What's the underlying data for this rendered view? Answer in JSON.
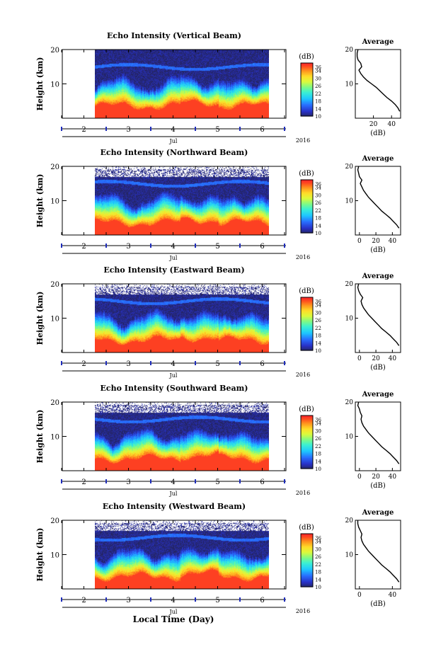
{
  "figure": {
    "xlabel": "Local Time (Day)"
  },
  "chart_data": [
    {
      "type": "heatmap",
      "title": "Echo Intensity (Vertical Beam)",
      "ylabel": "Height (km)",
      "ylim": [
        0,
        20
      ],
      "y_ticks": [
        10,
        20
      ],
      "x_ticks": [
        "2",
        "3",
        "4",
        "5",
        "6"
      ],
      "month_label": "Jul",
      "year_label": "2016",
      "colorbar": {
        "label": "(dB)",
        "ticks": [
          "36",
          "34",
          "30",
          "26",
          "22",
          "18",
          "14",
          "10"
        ],
        "range": [
          10,
          38
        ]
      },
      "average": {
        "title": "Average",
        "xlabel": "(dB)",
        "x_ticks": [
          "20",
          "40"
        ],
        "xlim": [
          0,
          50
        ],
        "profile": [
          [
            2,
            49
          ],
          [
            3,
            47
          ],
          [
            4,
            44
          ],
          [
            5,
            40
          ],
          [
            6,
            35
          ],
          [
            7,
            31
          ],
          [
            8,
            27
          ],
          [
            9,
            23
          ],
          [
            10,
            18
          ],
          [
            11,
            13
          ],
          [
            12,
            9
          ],
          [
            13,
            6
          ],
          [
            14,
            4
          ],
          [
            15,
            7
          ],
          [
            16,
            6
          ],
          [
            17,
            3
          ],
          [
            18,
            2
          ],
          [
            19,
            2
          ],
          [
            20,
            3
          ]
        ]
      }
    },
    {
      "type": "heatmap",
      "title": "Echo Intensity (Northward Beam)",
      "ylabel": "Height (km)",
      "ylim": [
        0,
        20
      ],
      "y_ticks": [
        10,
        20
      ],
      "x_ticks": [
        "2",
        "3",
        "4",
        "5",
        "6"
      ],
      "month_label": "Jul",
      "year_label": "2016",
      "colorbar": {
        "label": "(dB)",
        "ticks": [
          "36",
          "34",
          "30",
          "26",
          "22",
          "18",
          "14",
          "10"
        ],
        "range": [
          10,
          38
        ]
      },
      "average": {
        "title": "Average",
        "xlabel": "(dB)",
        "x_ticks": [
          "0",
          "20",
          "40"
        ],
        "xlim": [
          -5,
          50
        ],
        "profile": [
          [
            2,
            48
          ],
          [
            3,
            45
          ],
          [
            4,
            41
          ],
          [
            5,
            37
          ],
          [
            6,
            32
          ],
          [
            7,
            27
          ],
          [
            8,
            23
          ],
          [
            9,
            19
          ],
          [
            10,
            15
          ],
          [
            11,
            11
          ],
          [
            12,
            8
          ],
          [
            13,
            5
          ],
          [
            14,
            3
          ],
          [
            15,
            1
          ],
          [
            16,
            3
          ],
          [
            17,
            0
          ],
          [
            18,
            -1
          ],
          [
            19,
            -2
          ],
          [
            20,
            -1
          ]
        ]
      }
    },
    {
      "type": "heatmap",
      "title": "Echo Intensity (Eastward Beam)",
      "ylabel": "Height (km)",
      "ylim": [
        0,
        20
      ],
      "y_ticks": [
        10,
        20
      ],
      "x_ticks": [
        "2",
        "3",
        "4",
        "5",
        "6"
      ],
      "month_label": "Jul",
      "year_label": "2016",
      "colorbar": {
        "label": "(dB)",
        "ticks": [
          "36",
          "34",
          "30",
          "26",
          "22",
          "18",
          "14",
          "10"
        ],
        "range": [
          10,
          38
        ]
      },
      "average": {
        "title": "Average",
        "xlabel": "(dB)",
        "x_ticks": [
          "0",
          "20",
          "40"
        ],
        "xlim": [
          -5,
          50
        ],
        "profile": [
          [
            2,
            48
          ],
          [
            3,
            45
          ],
          [
            4,
            41
          ],
          [
            5,
            37
          ],
          [
            6,
            32
          ],
          [
            7,
            27
          ],
          [
            8,
            23
          ],
          [
            9,
            19
          ],
          [
            10,
            15
          ],
          [
            11,
            11
          ],
          [
            12,
            8
          ],
          [
            13,
            5
          ],
          [
            14,
            3
          ],
          [
            15,
            2
          ],
          [
            16,
            4
          ],
          [
            17,
            1
          ],
          [
            18,
            -1
          ],
          [
            19,
            -2
          ],
          [
            20,
            -1
          ]
        ]
      }
    },
    {
      "type": "heatmap",
      "title": "Echo Intensity (Southward Beam)",
      "ylabel": "Height (km)",
      "ylim": [
        0,
        20
      ],
      "y_ticks": [
        10,
        20
      ],
      "x_ticks": [
        "2",
        "3",
        "4",
        "5",
        "6"
      ],
      "month_label": "Jul",
      "year_label": "2016",
      "colorbar": {
        "label": "(dB)",
        "ticks": [
          "36",
          "34",
          "30",
          "26",
          "22",
          "18",
          "14",
          "10"
        ],
        "range": [
          10,
          38
        ]
      },
      "average": {
        "title": "Average",
        "xlabel": "(dB)",
        "x_ticks": [
          "0",
          "20",
          "40"
        ],
        "xlim": [
          -5,
          50
        ],
        "profile": [
          [
            2,
            48
          ],
          [
            3,
            45
          ],
          [
            4,
            41
          ],
          [
            5,
            37
          ],
          [
            6,
            32
          ],
          [
            7,
            27
          ],
          [
            8,
            23
          ],
          [
            9,
            19
          ],
          [
            10,
            15
          ],
          [
            11,
            11
          ],
          [
            12,
            8
          ],
          [
            13,
            5
          ],
          [
            14,
            3
          ],
          [
            15,
            2
          ],
          [
            16,
            3
          ],
          [
            17,
            1
          ],
          [
            18,
            0
          ],
          [
            19,
            -2
          ],
          [
            20,
            -1
          ]
        ]
      }
    },
    {
      "type": "heatmap",
      "title": "Echo Intensity (Westward Beam)",
      "ylabel": "Height (km)",
      "ylim": [
        0,
        20
      ],
      "y_ticks": [
        10,
        20
      ],
      "x_ticks": [
        "2",
        "3",
        "4",
        "5",
        "6"
      ],
      "month_label": "Jul",
      "year_label": "2016",
      "colorbar": {
        "label": "(dB)",
        "ticks": [
          "36",
          "34",
          "30",
          "26",
          "22",
          "18",
          "14",
          "10"
        ],
        "range": [
          10,
          38
        ]
      },
      "average": {
        "title": "Average",
        "xlabel": "(dB)",
        "x_ticks": [
          "0",
          "40"
        ],
        "xlim": [
          -5,
          50
        ],
        "profile": [
          [
            2,
            48
          ],
          [
            3,
            45
          ],
          [
            4,
            41
          ],
          [
            5,
            37
          ],
          [
            6,
            32
          ],
          [
            7,
            27
          ],
          [
            8,
            23
          ],
          [
            9,
            19
          ],
          [
            10,
            15
          ],
          [
            11,
            11
          ],
          [
            12,
            8
          ],
          [
            13,
            5
          ],
          [
            14,
            3
          ],
          [
            15,
            2
          ],
          [
            16,
            3
          ],
          [
            17,
            1
          ],
          [
            18,
            -1
          ],
          [
            19,
            -2
          ],
          [
            20,
            -2
          ]
        ]
      }
    }
  ]
}
